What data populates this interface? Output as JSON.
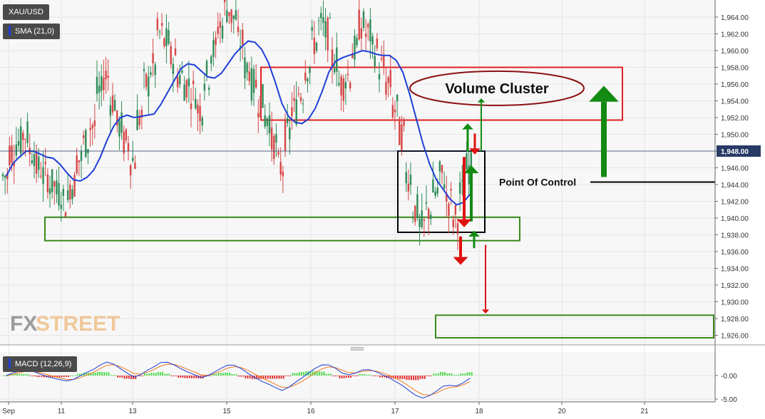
{
  "symbol": "XAU/USD",
  "indicator_label": "SMA (21,0)",
  "macd_label": "MACD (12,26,9)",
  "watermark": {
    "fx": "FX",
    "street": "STREET"
  },
  "colors": {
    "bull": "#2e8b57",
    "bear": "#d64545",
    "sma": "#1f3fd6",
    "resistance_box": "#e02020",
    "support_box": "#3a8a1e",
    "poc_box": "#000000",
    "cluster_ellipse": "#8b1010",
    "arrow_green": "#138a13",
    "arrow_red": "#e01010",
    "macd_line": "#1f3fd6",
    "signal_line": "#f07a20",
    "hist_pos": "#3fd93f",
    "hist_neg": "#e02020",
    "current_price_bg": "#283a66",
    "grid": "#e6e6e6"
  },
  "chart_data": {
    "type": "candlestick",
    "title": "XAU/USD",
    "price_axis": {
      "ticks": [
        1926,
        1928,
        1930,
        1932,
        1934,
        1936,
        1938,
        1940,
        1942,
        1944,
        1946,
        1948,
        1950,
        1952,
        1954,
        1956,
        1958,
        1960,
        1962,
        1964
      ],
      "tick_labels": [
        "1,926.00",
        "1,928.00",
        "1,930.00",
        "1,932.00",
        "1,934.00",
        "1,936.00",
        "1,938.00",
        "1,940.00",
        "1,942.00",
        "1,944.00",
        "1,946.00",
        "1,948.00",
        "1,950.00",
        "1,952.00",
        "1,954.00",
        "1,956.00",
        "1,958.00",
        "1,960.00",
        "1,962.00",
        "1,964.00"
      ],
      "range": [
        1924.5,
        1965.8
      ]
    },
    "x_axis": {
      "labels": [
        "Sep",
        "11",
        "13",
        "15",
        "16",
        "17",
        "18",
        "20",
        "21"
      ]
    },
    "current_price": {
      "value": 1948.0,
      "label": "1,948.00"
    },
    "close_series": [
      1945,
      1948,
      1949,
      1950,
      1948,
      1946,
      1945,
      1944,
      1943,
      1942,
      1944,
      1947,
      1949,
      1951,
      1955,
      1957,
      1954,
      1951,
      1949,
      1947,
      1952,
      1956,
      1958,
      1962,
      1961,
      1959,
      1957,
      1956,
      1955,
      1953,
      1957,
      1960,
      1963,
      1965,
      1964,
      1961,
      1958,
      1956,
      1954,
      1952,
      1949,
      1946,
      1950,
      1953,
      1955,
      1958,
      1961,
      1963,
      1962,
      1959,
      1956,
      1957,
      1960,
      1963,
      1962,
      1960,
      1958,
      1956,
      1953,
      1950,
      1945,
      1941,
      1939,
      1941,
      1943,
      1945,
      1942,
      1940,
      1943,
      1946
    ],
    "sma": {
      "name": "SMA (21,0)"
    },
    "annotations": {
      "volume_cluster": "Volume Cluster",
      "point_of_control": "Point Of Control",
      "poc_level": 1944.3,
      "resistance_zone": [
        1951.7,
        1958.0
      ],
      "support_zone": [
        1937.3,
        1940.1
      ],
      "lower_target_zone": [
        1925.7,
        1928.4
      ],
      "poc_box_zone": [
        1938.3,
        1948.0
      ]
    },
    "macd": {
      "name": "MACD (12,26,9)",
      "ticks": [
        0,
        -5
      ],
      "tick_labels": [
        "-0.00",
        "-5.00"
      ]
    }
  }
}
